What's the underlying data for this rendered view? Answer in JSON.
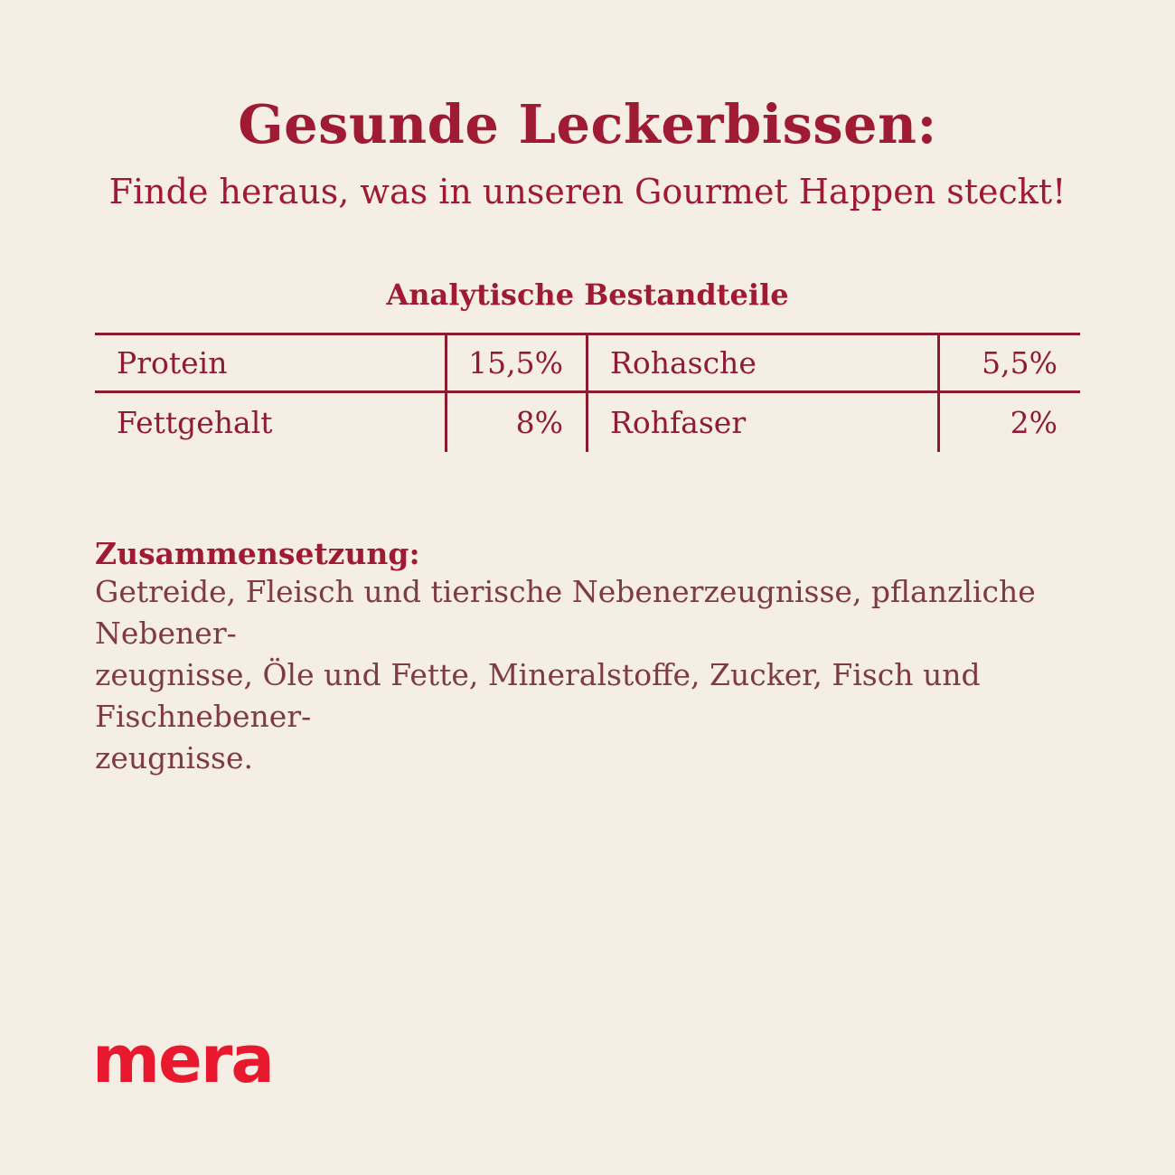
{
  "header": {
    "title": "Gesunde Leckerbissen:",
    "subtitle": "Finde heraus, was in unseren Gourmet Happen steckt!"
  },
  "analysis": {
    "title": "Analytische Bestandteile",
    "rows": [
      {
        "label1": "Protein",
        "value1": "15,5%",
        "label2": "Rohasche",
        "value2": "5,5%"
      },
      {
        "label1": "Fettgehalt",
        "value1": "8%",
        "label2": "Rohfaser",
        "value2": "2%"
      }
    ]
  },
  "composition": {
    "heading": "Zusammensetzung:",
    "lines": [
      "Getreide, Fleisch und tierische Nebenerzeugnisse, pflanzliche Nebener-",
      "zeugnisse, Öle und Fette, Mineralstoffe, Zucker, Fisch und Fischnebener-",
      "zeugnisse."
    ]
  },
  "footer": {
    "brand": "mera"
  },
  "colors": {
    "background": "#f4eee4",
    "heading": "#9e1b33",
    "table_line": "#8c1b30",
    "table_text": "#8e1d33",
    "body_text": "#7e3a45",
    "brand_red": "#e8192e"
  }
}
